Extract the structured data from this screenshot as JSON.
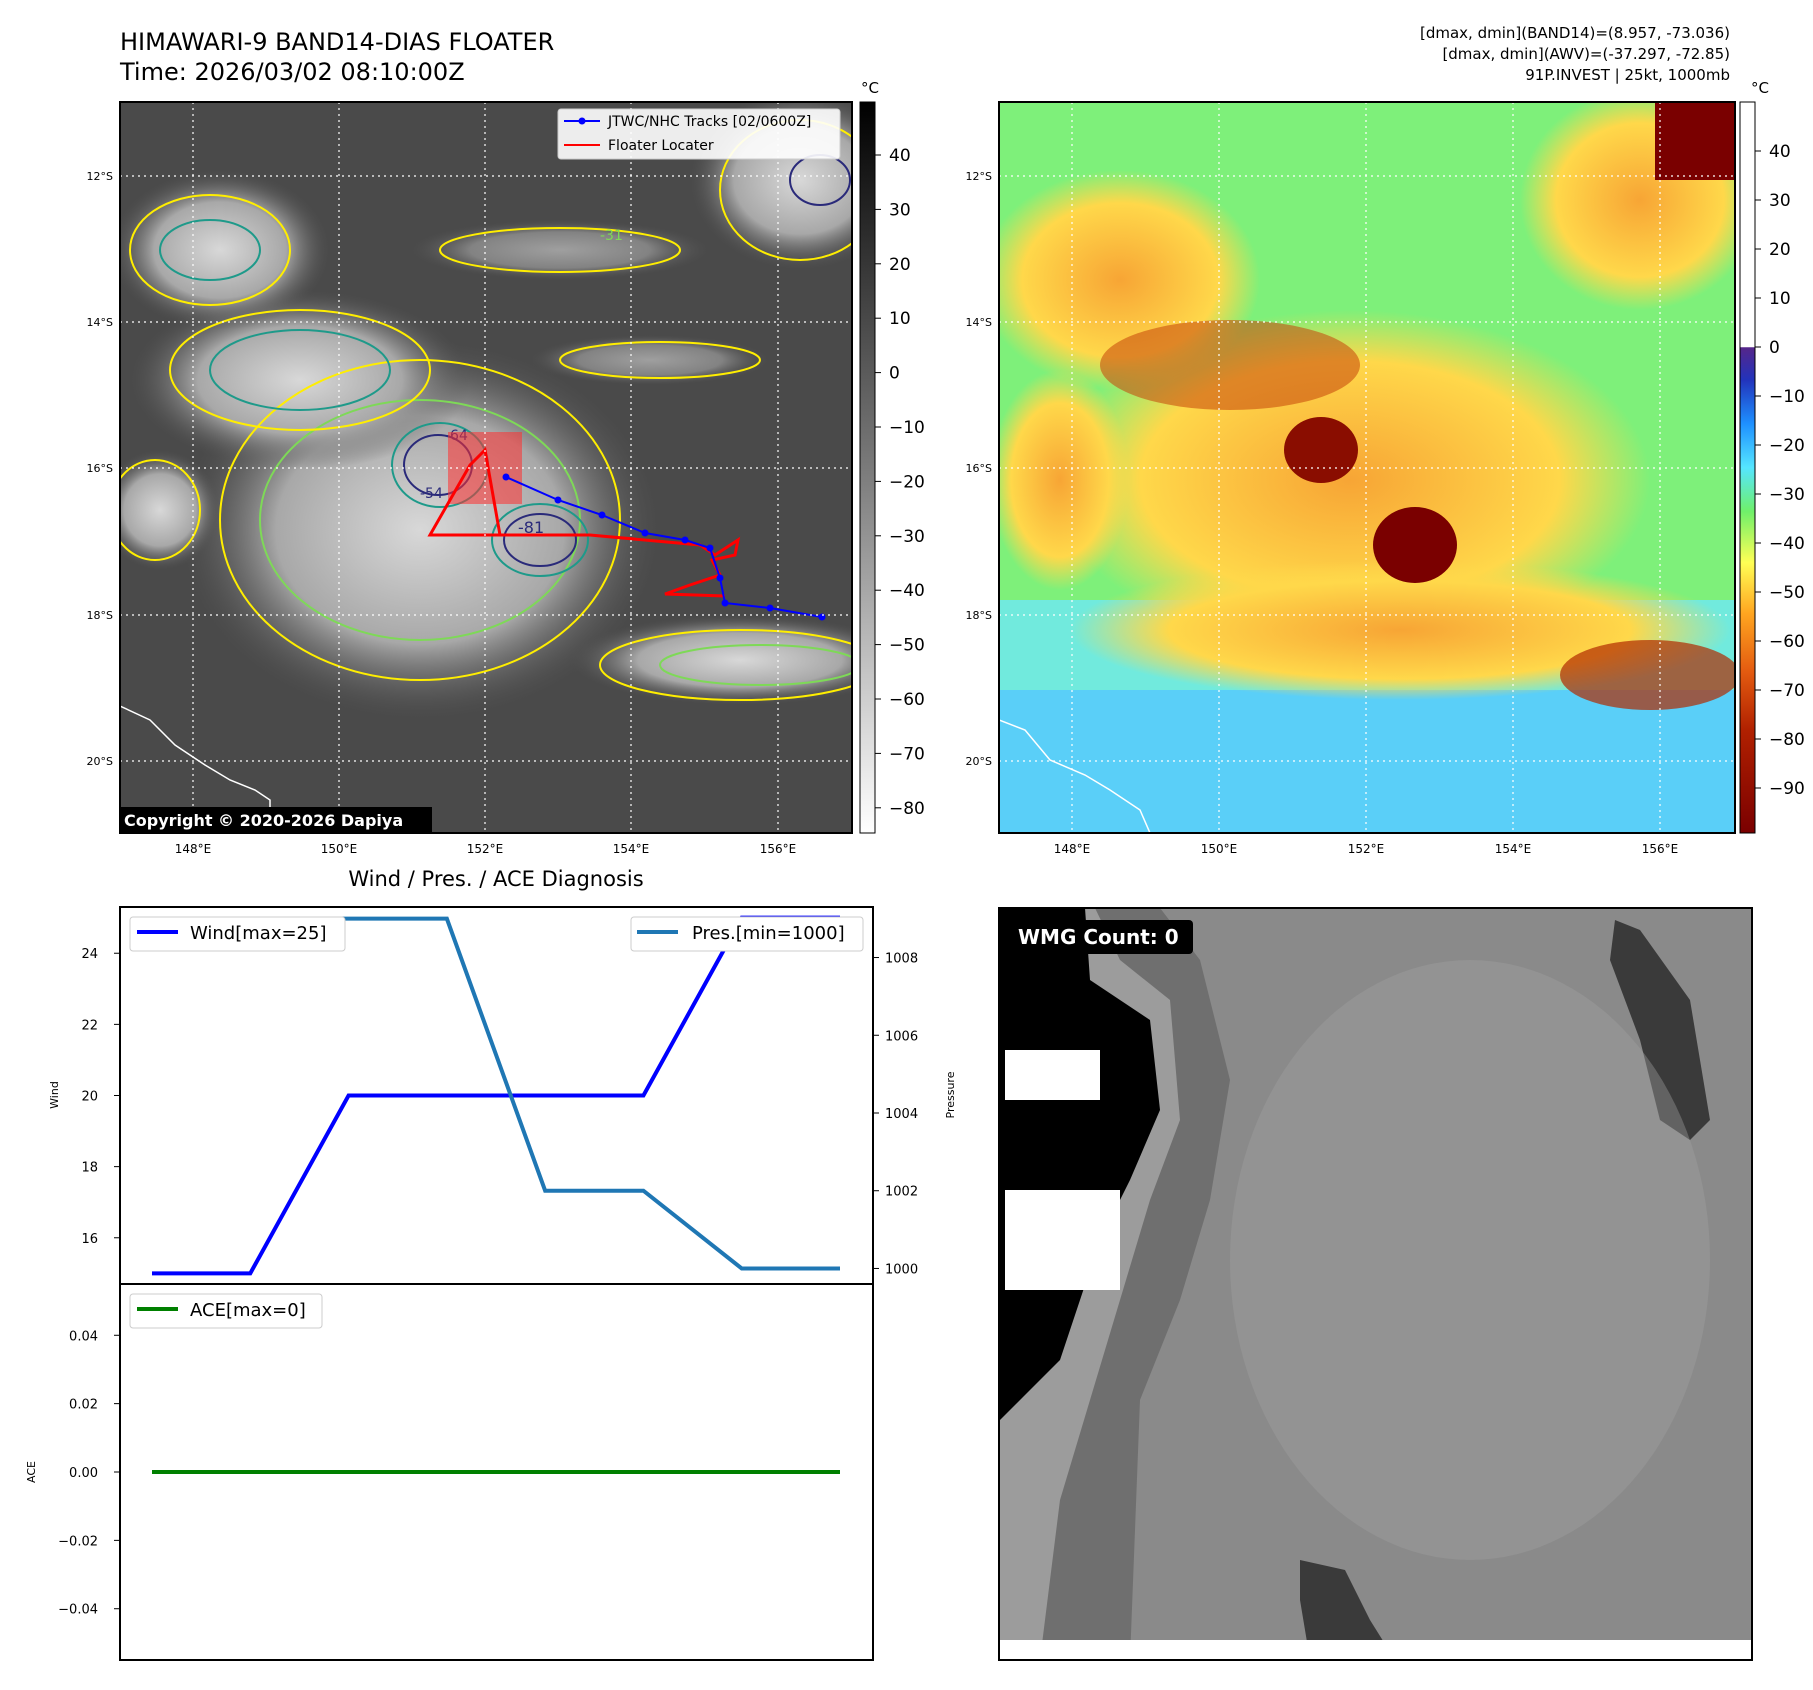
{
  "header": {
    "title": "HIMAWARI-9 BAND14-DIAS FLOATER",
    "time": "Time: 2026/03/02 08:10:00Z",
    "stats_line1": "[dmax, dmin](BAND14)=(8.957, -73.036)",
    "stats_line2": "[dmax, dmin](AWV)=(-37.297, -72.85)",
    "stats_line3": "91P.INVEST | 25kt, 1000mb"
  },
  "map": {
    "lat_labels": [
      "12°S",
      "14°S",
      "16°S",
      "18°S",
      "20°S"
    ],
    "lon_labels": [
      "148°E",
      "150°E",
      "152°E",
      "154°E",
      "156°E"
    ],
    "legend_track": "JTWC/NHC Tracks [02/0600Z]",
    "legend_floater": "Floater Locater",
    "copyright": "Copyright © 2020-2026 Dapiya",
    "contour_labels": [
      "-81",
      "-64",
      "-54",
      "-31"
    ],
    "colors": {
      "track": "#0000ff",
      "floater": "#ff0000",
      "contour_yellow": "#ffee00",
      "contour_green": "#7ed957",
      "contour_teal": "#1e9a8a",
      "contour_navy": "#2a2a7a"
    }
  },
  "colorbar_left": {
    "unit": "°C",
    "ticks": [
      "40",
      "30",
      "20",
      "10",
      "0",
      "−10",
      "−20",
      "−30",
      "−40",
      "−50",
      "−60",
      "−70",
      "−80"
    ]
  },
  "colorbar_right": {
    "unit": "°C",
    "ticks": [
      "40",
      "30",
      "20",
      "10",
      "0",
      "−10",
      "−20",
      "−30",
      "−40",
      "−50",
      "−60",
      "−70",
      "−80",
      "−90"
    ]
  },
  "diag": {
    "title": "Wind / Pres. / ACE Diagnosis",
    "wind_axis_label": "Wind",
    "pressure_axis_label": "Pressure",
    "ace_axis_label": "ACE",
    "wind_legend": "Wind[max=25]",
    "pres_legend": "Pres.[min=1000]",
    "ace_legend": "ACE[max=0]",
    "wind_ticks": [
      "24",
      "22",
      "20",
      "18",
      "16"
    ],
    "pres_ticks": [
      "1008",
      "1006",
      "1004",
      "1002",
      "1000"
    ],
    "ace_ticks": [
      "0.04",
      "0.02",
      "0.00",
      "−0.02",
      "−0.04"
    ],
    "colors": {
      "wind": "#0000ff",
      "pres": "#1f77b4",
      "ace": "#008000"
    }
  },
  "wmg": {
    "label": "WMG Count: 0"
  },
  "chart_data": [
    {
      "type": "line",
      "title": "Wind / Pres. / ACE Diagnosis",
      "x": [
        0,
        1,
        2,
        3,
        4,
        5,
        6,
        7
      ],
      "series": [
        {
          "name": "Wind[max=25]",
          "axis": "left",
          "values": [
            15,
            15,
            20,
            20,
            20,
            20,
            25,
            25
          ]
        },
        {
          "name": "Pres.[min=1000]",
          "axis": "right",
          "values": [
            1009,
            1009,
            1009,
            1009,
            1002,
            1002,
            1000,
            1000
          ]
        }
      ],
      "ylabel": "Wind",
      "ylim": [
        14.7,
        25.3
      ],
      "y2label": "Pressure",
      "y2lim": [
        999.6,
        1009.3
      ]
    },
    {
      "type": "line",
      "x": [
        0,
        1,
        2,
        3,
        4,
        5,
        6,
        7
      ],
      "series": [
        {
          "name": "ACE[max=0]",
          "values": [
            0,
            0,
            0,
            0,
            0,
            0,
            0,
            0
          ]
        }
      ],
      "ylabel": "ACE",
      "ylim": [
        -0.055,
        0.055
      ]
    }
  ]
}
